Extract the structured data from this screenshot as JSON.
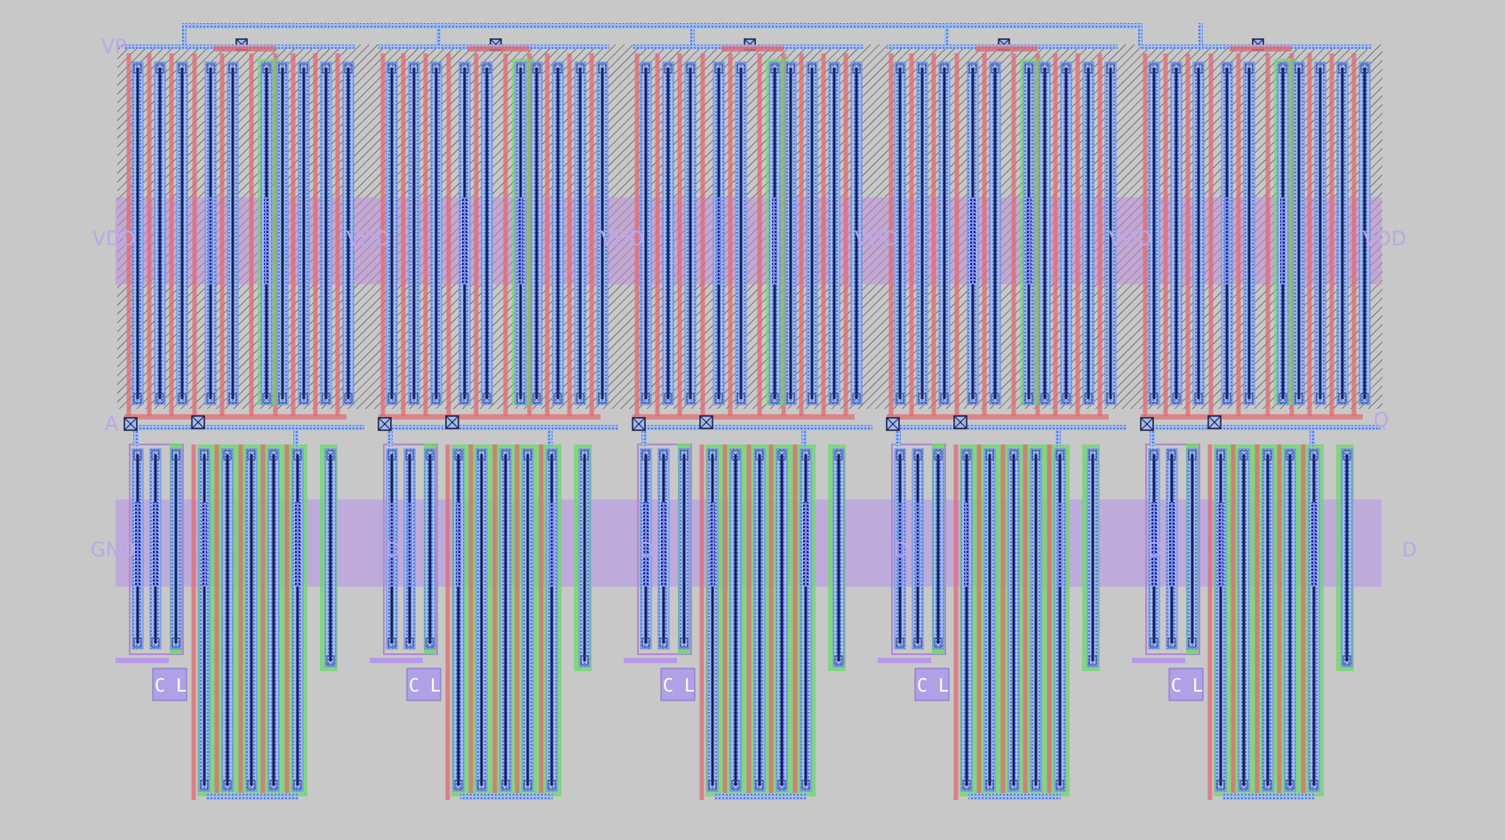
{
  "labels": {
    "vp": "VP",
    "vdd": "VDD",
    "gnd": "GND",
    "a": "A",
    "q": "Q",
    "cl": "C L"
  },
  "layout": {
    "cell_count": 5,
    "vdd_labels": [
      "VDD",
      "VDD",
      "VDD",
      "VDD",
      "VDD",
      "VDD"
    ],
    "gnd_labels": [
      "GND",
      "D",
      "D",
      "D",
      "D",
      "D"
    ],
    "cl_labels": [
      "C L",
      "C L",
      "C L",
      "C L",
      "C L"
    ]
  },
  "colors": {
    "background": "#c8c8c8",
    "metal1": "#8fb4ec",
    "metal2": "#e08a82",
    "poly": "#e06a70",
    "nwell_hatch": "#3a3a3a",
    "pwell": "#b090e0",
    "active": "#6cd86c",
    "contact": "#1010a0",
    "gate": "#141e60",
    "label": "#b8a8e8"
  }
}
